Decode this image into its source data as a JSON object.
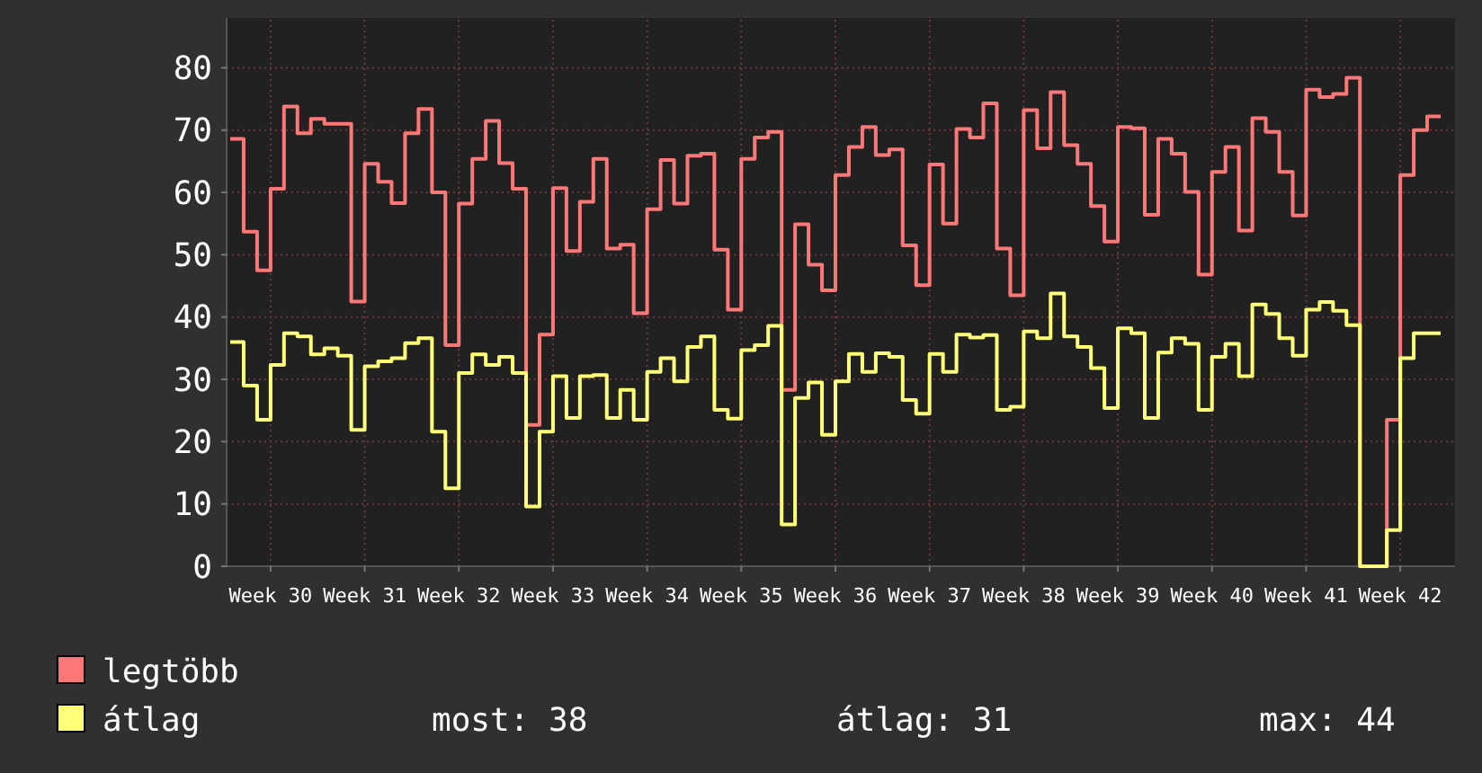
{
  "chart_data": {
    "type": "step",
    "categories": [
      null,
      null,
      null,
      "Week 30",
      null,
      null,
      null,
      null,
      null,
      null,
      "Week 31",
      null,
      null,
      null,
      null,
      null,
      null,
      "Week 32",
      null,
      null,
      null,
      null,
      null,
      null,
      "Week 33",
      null,
      null,
      null,
      null,
      null,
      null,
      "Week 34",
      null,
      null,
      null,
      null,
      null,
      null,
      "Week 35",
      null,
      null,
      null,
      null,
      null,
      null,
      "Week 36",
      null,
      null,
      null,
      null,
      null,
      null,
      "Week 37",
      null,
      null,
      null,
      null,
      null,
      null,
      "Week 38",
      null,
      null,
      null,
      null,
      null,
      null,
      "Week 39",
      null,
      null,
      null,
      null,
      null,
      null,
      "Week 40",
      null,
      null,
      null,
      null,
      null,
      null,
      "Week 41",
      null,
      null,
      null,
      null,
      null,
      null,
      "Week 42",
      null,
      null,
      null
    ],
    "series": [
      {
        "name": "legtöbb",
        "color": "#ff7878",
        "values": [
          68.6,
          53.7,
          47.5,
          60.6,
          73.8,
          69.5,
          71.8,
          71,
          71,
          42.5,
          64.6,
          61.7,
          58.3,
          69.5,
          73.4,
          60,
          35.5,
          58.2,
          65.4,
          71.5,
          64.7,
          60.6,
          22.7,
          37.2,
          60.7,
          50.6,
          58.5,
          65.4,
          51,
          51.6,
          40.6,
          57.3,
          65.2,
          58.2,
          65.9,
          66.2,
          50.8,
          41.2,
          65.4,
          68.8,
          69.7,
          28.3,
          54.9,
          48.4,
          44.3,
          62.8,
          67.3,
          70.5,
          66,
          66.9,
          51.5,
          45.1,
          64.5,
          55,
          70.2,
          68.8,
          74.3,
          51,
          43.5,
          73.2,
          67.1,
          76.1,
          67.6,
          64.6,
          57.8,
          52.1,
          70.5,
          70.3,
          56.4,
          68.6,
          66.2,
          60.1,
          46.8,
          63.3,
          67.3,
          53.9,
          71.9,
          69.7,
          63.3,
          56.3,
          76.5,
          75.3,
          75.8,
          78.4,
          0,
          0,
          23.5,
          62.8,
          70,
          72.2,
          72.2
        ]
      },
      {
        "name": "átlag",
        "color": "#ffff78",
        "values": [
          36,
          29,
          23.5,
          32.3,
          37.4,
          36.9,
          34,
          35,
          33.8,
          21.9,
          32.1,
          32.9,
          33.4,
          35.8,
          36.6,
          21.6,
          12.5,
          31,
          34,
          32.3,
          33.6,
          31,
          9.6,
          21.6,
          30.5,
          23.8,
          30.5,
          30.7,
          23.8,
          28.3,
          23.5,
          31.2,
          33.4,
          29.7,
          35.2,
          36.9,
          25.1,
          23.7,
          34.7,
          35.5,
          38.6,
          6.7,
          27,
          29.5,
          21.1,
          29.7,
          34.1,
          31.2,
          34.2,
          33.6,
          26.7,
          24.5,
          34.1,
          31.2,
          37.2,
          36.7,
          37.1,
          25.1,
          25.6,
          37.7,
          36.6,
          43.8,
          36.9,
          35.2,
          31.8,
          25.4,
          38.2,
          37.4,
          23.8,
          34.3,
          36.6,
          35.7,
          25.1,
          33.6,
          35.7,
          30.5,
          42,
          40.5,
          36.6,
          33.8,
          41.2,
          42.4,
          41,
          38.7,
          0,
          0,
          5.8,
          33.4,
          37.4,
          37.4,
          37.4
        ]
      }
    ],
    "ylim": [
      0,
      88
    ],
    "yticks": [
      0,
      10,
      20,
      30,
      40,
      50,
      60,
      70,
      80
    ],
    "grid": true,
    "legend": "bottom",
    "annotations": [
      "most: 38",
      "átlag: 31",
      "max: 44"
    ]
  }
}
